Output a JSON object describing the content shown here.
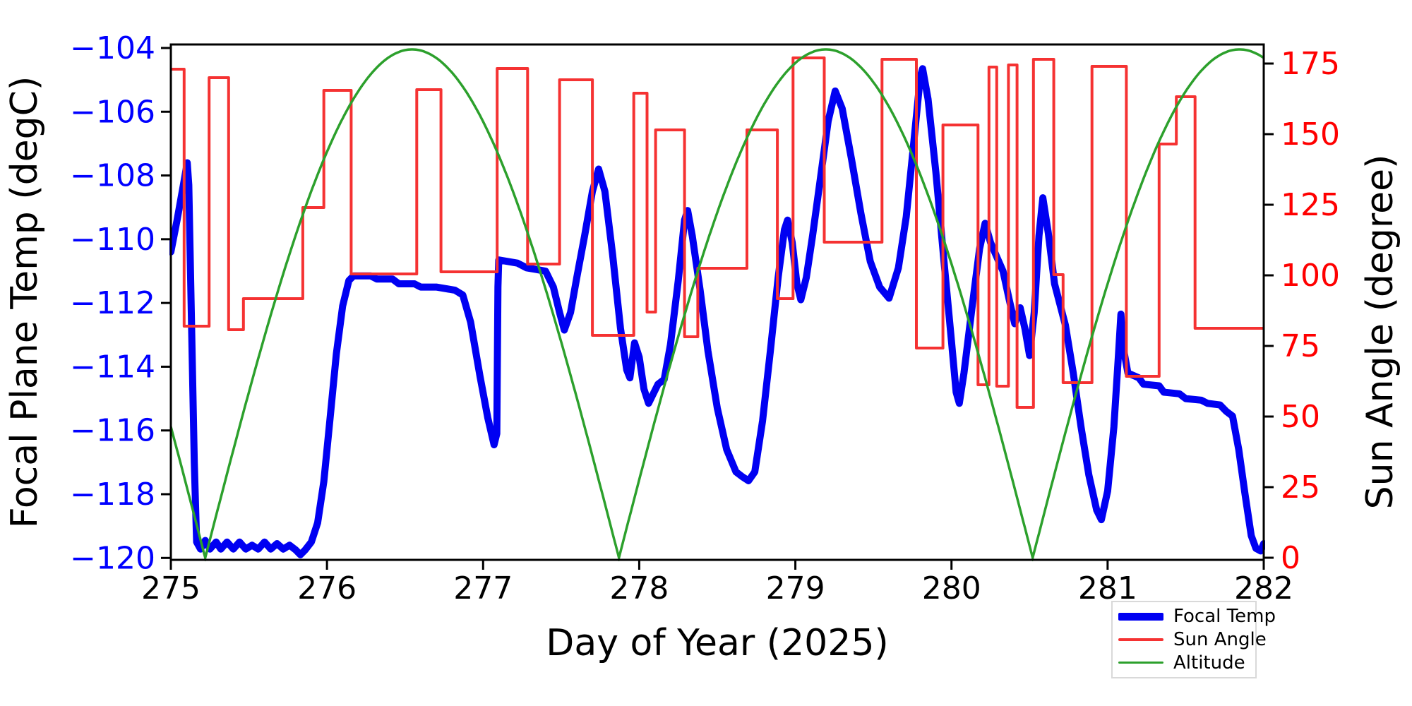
{
  "chart_data": {
    "type": "line",
    "title": "",
    "xlabel": "Day of Year (2025)",
    "ylabel_left": "Focal Plane Temp (degC)",
    "ylabel_right": "Sun Angle (degree)",
    "xlim": [
      275,
      282
    ],
    "ylim_left": [
      -120.06,
      -103.89
    ],
    "ylim_right": [
      -0.75,
      181.75
    ],
    "grid": false,
    "legend_position": "lower-right-outside",
    "x_ticks": [
      {
        "v": 275,
        "label": "275"
      },
      {
        "v": 276,
        "label": "276"
      },
      {
        "v": 277,
        "label": "277"
      },
      {
        "v": 278,
        "label": "278"
      },
      {
        "v": 279,
        "label": "279"
      },
      {
        "v": 280,
        "label": "280"
      },
      {
        "v": 281,
        "label": "281"
      },
      {
        "v": 282,
        "label": "282"
      }
    ],
    "y_ticks_left": [
      {
        "v": -104,
        "label": "−104"
      },
      {
        "v": -106,
        "label": "−106"
      },
      {
        "v": -108,
        "label": "−108"
      },
      {
        "v": -110,
        "label": "−110"
      },
      {
        "v": -112,
        "label": "−112"
      },
      {
        "v": -114,
        "label": "−114"
      },
      {
        "v": -116,
        "label": "−116"
      },
      {
        "v": -118,
        "label": "−118"
      },
      {
        "v": -120,
        "label": "−120"
      }
    ],
    "y_ticks_right": [
      {
        "v": 0,
        "label": "0"
      },
      {
        "v": 25,
        "label": "25"
      },
      {
        "v": 50,
        "label": "50"
      },
      {
        "v": 75,
        "label": "75"
      },
      {
        "v": 100,
        "label": "100"
      },
      {
        "v": 125,
        "label": "125"
      },
      {
        "v": 150,
        "label": "150"
      },
      {
        "v": 175,
        "label": "175"
      }
    ],
    "colors": {
      "focal_temp": "#0000f2",
      "sun_angle": "#f53232",
      "altitude": "#2ca02c",
      "left_tick_labels": "#0000ff",
      "right_tick_labels": "#ff0000",
      "axis": "#000000",
      "legend_border": "#d9d9d9"
    },
    "series": [
      {
        "name": "Focal Temp",
        "key": "focal_temp",
        "style": "line",
        "linewidth": 10,
        "points": [
          [
            275.0,
            -110.4
          ],
          [
            275.04,
            -109.4
          ],
          [
            275.08,
            -108.3
          ],
          [
            275.105,
            -107.6
          ],
          [
            275.115,
            -108.3
          ],
          [
            275.13,
            -112.0
          ],
          [
            275.15,
            -117.0
          ],
          [
            275.165,
            -119.5
          ],
          [
            275.19,
            -119.72
          ],
          [
            275.22,
            -119.45
          ],
          [
            275.25,
            -119.72
          ],
          [
            275.29,
            -119.5
          ],
          [
            275.32,
            -119.72
          ],
          [
            275.36,
            -119.5
          ],
          [
            275.4,
            -119.72
          ],
          [
            275.44,
            -119.5
          ],
          [
            275.48,
            -119.72
          ],
          [
            275.52,
            -119.6
          ],
          [
            275.56,
            -119.72
          ],
          [
            275.6,
            -119.5
          ],
          [
            275.64,
            -119.72
          ],
          [
            275.68,
            -119.55
          ],
          [
            275.72,
            -119.72
          ],
          [
            275.76,
            -119.6
          ],
          [
            275.8,
            -119.75
          ],
          [
            275.83,
            -119.9
          ],
          [
            275.86,
            -119.75
          ],
          [
            275.9,
            -119.5
          ],
          [
            275.94,
            -118.9
          ],
          [
            275.98,
            -117.6
          ],
          [
            276.02,
            -115.6
          ],
          [
            276.06,
            -113.6
          ],
          [
            276.1,
            -112.1
          ],
          [
            276.14,
            -111.3
          ],
          [
            276.17,
            -111.15
          ],
          [
            276.28,
            -111.15
          ],
          [
            276.32,
            -111.25
          ],
          [
            276.42,
            -111.25
          ],
          [
            276.46,
            -111.4
          ],
          [
            276.56,
            -111.4
          ],
          [
            276.6,
            -111.5
          ],
          [
            276.7,
            -111.5
          ],
          [
            276.76,
            -111.55
          ],
          [
            276.82,
            -111.6
          ],
          [
            276.87,
            -111.75
          ],
          [
            276.92,
            -112.6
          ],
          [
            276.98,
            -114.3
          ],
          [
            277.03,
            -115.6
          ],
          [
            277.07,
            -116.45
          ],
          [
            277.088,
            -116.1
          ],
          [
            277.095,
            -111.5
          ],
          [
            277.1,
            -110.65
          ],
          [
            277.16,
            -110.7
          ],
          [
            277.22,
            -110.75
          ],
          [
            277.28,
            -110.9
          ],
          [
            277.34,
            -110.95
          ],
          [
            277.4,
            -111.0
          ],
          [
            277.45,
            -111.5
          ],
          [
            277.49,
            -112.3
          ],
          [
            277.52,
            -112.85
          ],
          [
            277.56,
            -112.3
          ],
          [
            277.6,
            -111.2
          ],
          [
            277.65,
            -109.9
          ],
          [
            277.7,
            -108.5
          ],
          [
            277.74,
            -107.8
          ],
          [
            277.78,
            -108.5
          ],
          [
            277.83,
            -110.5
          ],
          [
            277.88,
            -112.8
          ],
          [
            277.92,
            -114.1
          ],
          [
            277.94,
            -114.35
          ],
          [
            277.97,
            -113.25
          ],
          [
            278.0,
            -113.7
          ],
          [
            278.03,
            -114.7
          ],
          [
            278.06,
            -115.15
          ],
          [
            278.09,
            -114.85
          ],
          [
            278.12,
            -114.55
          ],
          [
            278.16,
            -114.4
          ],
          [
            278.2,
            -113.3
          ],
          [
            278.25,
            -111.3
          ],
          [
            278.29,
            -109.4
          ],
          [
            278.31,
            -109.1
          ],
          [
            278.34,
            -109.9
          ],
          [
            278.39,
            -111.6
          ],
          [
            278.44,
            -113.5
          ],
          [
            278.5,
            -115.3
          ],
          [
            278.56,
            -116.6
          ],
          [
            278.62,
            -117.3
          ],
          [
            278.66,
            -117.45
          ],
          [
            278.7,
            -117.58
          ],
          [
            278.74,
            -117.3
          ],
          [
            278.79,
            -115.7
          ],
          [
            278.84,
            -113.5
          ],
          [
            278.89,
            -111.2
          ],
          [
            278.93,
            -109.7
          ],
          [
            278.95,
            -109.4
          ],
          [
            278.98,
            -110.1
          ],
          [
            279.01,
            -111.4
          ],
          [
            279.035,
            -111.9
          ],
          [
            279.07,
            -111.2
          ],
          [
            279.11,
            -109.9
          ],
          [
            279.16,
            -108.1
          ],
          [
            279.21,
            -106.3
          ],
          [
            279.255,
            -105.35
          ],
          [
            279.3,
            -105.9
          ],
          [
            279.36,
            -107.5
          ],
          [
            279.42,
            -109.2
          ],
          [
            279.48,
            -110.7
          ],
          [
            279.54,
            -111.5
          ],
          [
            279.6,
            -111.85
          ],
          [
            279.66,
            -110.9
          ],
          [
            279.71,
            -109.3
          ],
          [
            279.76,
            -106.9
          ],
          [
            279.8,
            -104.9
          ],
          [
            279.815,
            -104.65
          ],
          [
            279.85,
            -105.6
          ],
          [
            279.9,
            -107.9
          ],
          [
            279.95,
            -110.6
          ],
          [
            280.0,
            -113.2
          ],
          [
            280.03,
            -114.8
          ],
          [
            280.05,
            -115.15
          ],
          [
            280.08,
            -114.2
          ],
          [
            280.13,
            -112.2
          ],
          [
            280.18,
            -110.3
          ],
          [
            280.215,
            -109.5
          ],
          [
            280.25,
            -110.1
          ],
          [
            280.29,
            -110.55
          ],
          [
            280.33,
            -111.0
          ],
          [
            280.37,
            -111.9
          ],
          [
            280.405,
            -112.65
          ],
          [
            280.44,
            -112.15
          ],
          [
            280.47,
            -112.8
          ],
          [
            280.5,
            -113.65
          ],
          [
            280.53,
            -112.3
          ],
          [
            280.56,
            -109.9
          ],
          [
            280.585,
            -108.7
          ],
          [
            280.62,
            -109.8
          ],
          [
            280.66,
            -111.4
          ],
          [
            280.695,
            -112.05
          ],
          [
            280.73,
            -112.7
          ],
          [
            280.78,
            -114.2
          ],
          [
            280.83,
            -115.9
          ],
          [
            280.88,
            -117.4
          ],
          [
            280.93,
            -118.5
          ],
          [
            280.96,
            -118.8
          ],
          [
            281.0,
            -117.9
          ],
          [
            281.04,
            -115.9
          ],
          [
            281.07,
            -113.6
          ],
          [
            281.085,
            -112.35
          ],
          [
            281.1,
            -113.4
          ],
          [
            281.13,
            -114.2
          ],
          [
            281.2,
            -114.35
          ],
          [
            281.23,
            -114.55
          ],
          [
            281.33,
            -114.6
          ],
          [
            281.36,
            -114.8
          ],
          [
            281.46,
            -114.85
          ],
          [
            281.5,
            -115.0
          ],
          [
            281.6,
            -115.05
          ],
          [
            281.64,
            -115.15
          ],
          [
            281.72,
            -115.2
          ],
          [
            281.76,
            -115.4
          ],
          [
            281.8,
            -115.55
          ],
          [
            281.84,
            -116.6
          ],
          [
            281.88,
            -118.0
          ],
          [
            281.92,
            -119.3
          ],
          [
            281.95,
            -119.7
          ],
          [
            281.98,
            -119.78
          ],
          [
            282.0,
            -119.55
          ]
        ]
      },
      {
        "name": "Sun Angle",
        "key": "sun_angle",
        "style": "step",
        "linewidth": 4,
        "segments": [
          [
            275.0,
            275.085,
            173
          ],
          [
            275.085,
            275.245,
            82
          ],
          [
            275.245,
            275.37,
            170
          ],
          [
            275.37,
            275.465,
            80.75
          ],
          [
            275.465,
            275.845,
            91.75
          ],
          [
            275.845,
            275.98,
            124
          ],
          [
            275.98,
            276.155,
            165.5
          ],
          [
            276.155,
            276.575,
            100.5
          ],
          [
            276.575,
            276.73,
            165.75
          ],
          [
            276.73,
            277.09,
            101.25
          ],
          [
            277.09,
            277.285,
            173.25
          ],
          [
            277.285,
            277.49,
            104
          ],
          [
            277.49,
            277.7,
            169.25
          ],
          [
            277.7,
            277.965,
            78.75
          ],
          [
            277.965,
            278.05,
            164.5
          ],
          [
            278.05,
            278.105,
            87
          ],
          [
            278.105,
            278.29,
            151.5
          ],
          [
            278.29,
            278.375,
            78.25
          ],
          [
            278.375,
            278.69,
            102.5
          ],
          [
            278.69,
            278.885,
            151.5
          ],
          [
            278.885,
            278.985,
            91.75
          ],
          [
            278.985,
            279.185,
            177
          ],
          [
            279.185,
            279.555,
            111.75
          ],
          [
            279.555,
            279.775,
            176.5
          ],
          [
            279.775,
            279.945,
            74.25
          ],
          [
            279.945,
            280.17,
            153.25
          ],
          [
            280.17,
            280.24,
            61.25
          ],
          [
            280.24,
            280.29,
            173.75
          ],
          [
            280.29,
            280.365,
            60.75
          ],
          [
            280.365,
            280.42,
            174.5
          ],
          [
            280.42,
            280.525,
            53.25
          ],
          [
            280.525,
            280.655,
            176.5
          ],
          [
            280.655,
            280.715,
            100.25
          ],
          [
            280.715,
            280.9,
            62
          ],
          [
            280.9,
            281.12,
            174
          ],
          [
            281.12,
            281.33,
            64.25
          ],
          [
            281.33,
            281.44,
            146.5
          ],
          [
            281.44,
            281.56,
            163.25
          ],
          [
            281.56,
            282.0,
            81.25
          ]
        ]
      },
      {
        "name": "Altitude",
        "key": "altitude",
        "style": "function",
        "linewidth": 3.5,
        "model": "amplitude * |sin(pi * (t - t0) / arc_period)|",
        "amplitude": 180,
        "t0": 275.22,
        "arc_period": 2.65,
        "minima_days": [
          275.22,
          277.87,
          280.52
        ],
        "maxima_days": [
          276.545,
          279.195,
          281.845
        ],
        "value_range": [
          0,
          180
        ]
      }
    ],
    "legend": [
      {
        "label": "Focal Temp",
        "swatch_height": 11
      },
      {
        "label": "Sun Angle",
        "swatch_height": 4
      },
      {
        "label": "Altitude",
        "swatch_height": 3.5
      }
    ]
  }
}
